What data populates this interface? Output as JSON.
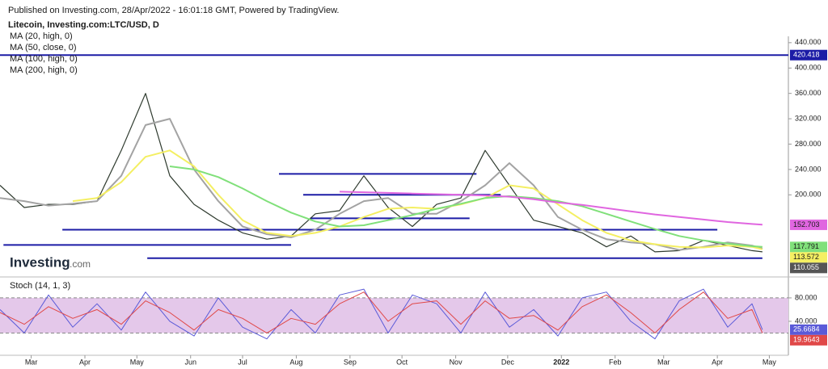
{
  "header": "Published on Investing.com, 28/Apr/2022 - 16:01:18 GMT, Powered by TradingView.",
  "logo": {
    "name": "Investing",
    "suffix": ".com"
  },
  "chart_data": {
    "type": "line",
    "title": "Litecoin, Investing.com:LTC/USD, D",
    "xlim": [
      0,
      455
    ],
    "xticks": [
      {
        "value": 18,
        "label": "Mar"
      },
      {
        "value": 49,
        "label": "Apr"
      },
      {
        "value": 79,
        "label": "May"
      },
      {
        "value": 110,
        "label": "Jun"
      },
      {
        "value": 140,
        "label": "Jul"
      },
      {
        "value": 171,
        "label": "Aug"
      },
      {
        "value": 202,
        "label": "Sep"
      },
      {
        "value": 232,
        "label": "Oct"
      },
      {
        "value": 263,
        "label": "Nov"
      },
      {
        "value": 293,
        "label": "Dec"
      },
      {
        "value": 324,
        "label": "2022"
      },
      {
        "value": 355,
        "label": "Feb"
      },
      {
        "value": 383,
        "label": "Mar"
      },
      {
        "value": 414,
        "label": "Apr"
      },
      {
        "value": 444,
        "label": "May"
      }
    ],
    "ylim": [
      73,
      450
    ],
    "yticks": [
      {
        "value": 440,
        "label": "440.000"
      },
      {
        "value": 400,
        "label": "400.000"
      },
      {
        "value": 360,
        "label": "360.000"
      },
      {
        "value": 320,
        "label": "320.000"
      },
      {
        "value": 280,
        "label": "280.000"
      },
      {
        "value": 240,
        "label": "240.000"
      },
      {
        "value": 200,
        "label": "200.000"
      }
    ],
    "x": [
      0,
      14,
      28,
      42,
      56,
      70,
      84,
      98,
      112,
      126,
      140,
      154,
      168,
      182,
      196,
      210,
      224,
      238,
      252,
      266,
      280,
      294,
      308,
      322,
      336,
      350,
      364,
      378,
      392,
      406,
      420,
      434,
      440
    ],
    "series": [
      {
        "color": "#2f3b2f",
        "values": [
          215,
          180,
          185,
          185,
          190,
          270,
          360,
          230,
          185,
          160,
          140,
          130,
          135,
          170,
          175,
          230,
          180,
          150,
          185,
          195,
          270,
          215,
          160,
          150,
          140,
          118,
          135,
          110,
          112,
          128,
          120,
          112,
          110
        ]
      },
      {
        "name": "MA (20, high, 0)",
        "color": "#a3a3a3",
        "values": [
          195,
          190,
          183,
          186,
          190,
          230,
          310,
          320,
          240,
          190,
          150,
          138,
          133,
          145,
          170,
          190,
          195,
          170,
          170,
          190,
          215,
          250,
          215,
          165,
          145,
          130,
          125,
          122,
          113,
          118,
          125,
          120,
          115
        ]
      },
      {
        "name": "MA (50, close, 0)",
        "color": "#f4ef62",
        "values": [
          null,
          null,
          null,
          190,
          195,
          220,
          260,
          270,
          245,
          200,
          160,
          140,
          135,
          140,
          150,
          165,
          178,
          180,
          178,
          185,
          195,
          215,
          210,
          185,
          160,
          140,
          128,
          122,
          118,
          117,
          120,
          118,
          114
        ]
      },
      {
        "name": "MA (100, high, 0)",
        "color": "#80e07a",
        "values": [
          null,
          null,
          null,
          null,
          null,
          null,
          null,
          245,
          240,
          228,
          210,
          190,
          172,
          158,
          150,
          152,
          160,
          168,
          178,
          186,
          195,
          198,
          195,
          190,
          182,
          170,
          158,
          146,
          135,
          128,
          123,
          119,
          118
        ]
      },
      {
        "name": "MA (200, high, 0)",
        "color": "#e066e0",
        "values": [
          null,
          null,
          null,
          null,
          null,
          null,
          null,
          null,
          null,
          null,
          null,
          null,
          null,
          null,
          205,
          204,
          203,
          202,
          201,
          200,
          199,
          197,
          193,
          188,
          184,
          179,
          174,
          169,
          165,
          161,
          157,
          154,
          153
        ]
      }
    ],
    "hlines": [
      {
        "value": 420.418,
        "x": [
          0,
          455
        ],
        "color": "#1c1ca6"
      },
      {
        "value": 121,
        "x": [
          2,
          168
        ],
        "color": "#1c1ca6"
      },
      {
        "value": 145,
        "x": [
          36,
          414
        ],
        "color": "#1c1ca6"
      },
      {
        "value": 100,
        "x": [
          85,
          440
        ],
        "color": "#1c1ca6"
      },
      {
        "value": 233,
        "x": [
          161,
          275
        ],
        "color": "#1c1ca6"
      },
      {
        "value": 200,
        "x": [
          175,
          289
        ],
        "color": "#1c1ca6"
      },
      {
        "value": 163,
        "x": [
          179,
          271
        ],
        "color": "#1c1ca6"
      }
    ],
    "price_labels": [
      {
        "value": 420.418,
        "color": "#1c1ca6",
        "text_color": "#ffffff"
      },
      {
        "value": 152.703,
        "color": "#e066e0",
        "text_color": "#1a1a1a"
      },
      {
        "value": 117.791,
        "color": "#80e07a",
        "text_color": "#1a1a1a"
      },
      {
        "value": 113.572,
        "color": "#f4ef62",
        "text_color": "#1a1a1a"
      },
      {
        "value": 110.055,
        "color": "#555555",
        "text_color": "#ffffff"
      }
    ],
    "indicator": {
      "title": "Stoch (14, 1, 3)",
      "ylim": [
        -18,
        113
      ],
      "yticks": [
        {
          "value": 80,
          "label": "80.000"
        },
        {
          "value": 40,
          "label": "40.000"
        }
      ],
      "band": [
        20,
        80
      ],
      "band_color": "#e4c8ea",
      "series": [
        {
          "color": "#5a5ad8",
          "text_color": "#ffffff",
          "values": [
            60,
            20,
            85,
            30,
            70,
            25,
            90,
            40,
            15,
            80,
            30,
            10,
            60,
            20,
            85,
            95,
            20,
            85,
            70,
            20,
            90,
            30,
            60,
            15,
            80,
            90,
            40,
            10,
            75,
            95,
            30,
            70,
            25.6684
          ]
        },
        {
          "color": "#e04848",
          "text_color": "#ffffff",
          "values": [
            55,
            35,
            65,
            45,
            60,
            35,
            75,
            55,
            25,
            60,
            45,
            20,
            45,
            35,
            70,
            90,
            40,
            70,
            75,
            35,
            75,
            45,
            50,
            25,
            65,
            85,
            55,
            20,
            60,
            90,
            45,
            60,
            19.9643
          ]
        }
      ]
    }
  }
}
